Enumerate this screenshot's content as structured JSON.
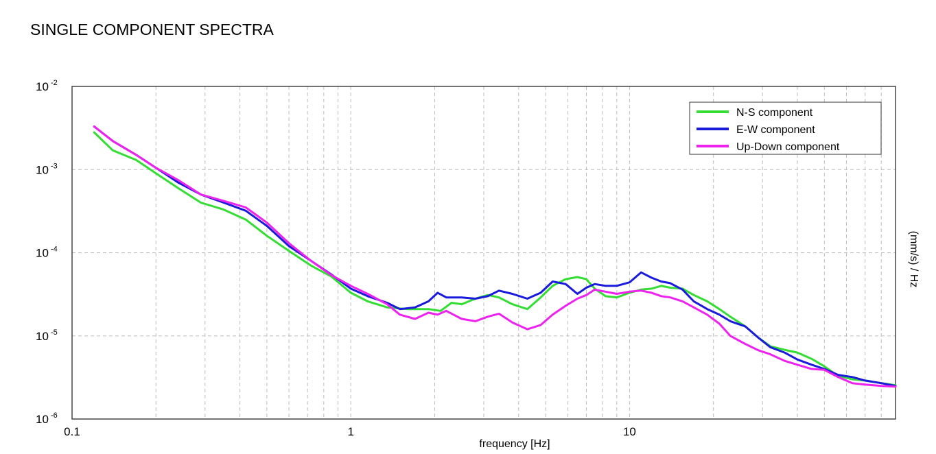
{
  "chart_data": {
    "type": "line",
    "title": "SINGLE COMPONENT SPECTRA",
    "xlabel": "frequency [Hz]",
    "ylabel": "(mm/s) / Hz",
    "xscale": "log",
    "yscale": "log",
    "xlim": [
      0.1,
      90
    ],
    "ylim": [
      1e-06,
      0.01
    ],
    "grid": true,
    "legend_position": "top-right",
    "x_ticks": [
      {
        "value": 0.1,
        "label": "0.1"
      },
      {
        "value": 1,
        "label": "1"
      },
      {
        "value": 10,
        "label": "10"
      }
    ],
    "y_ticks": [
      {
        "value": 0.01,
        "base": "10",
        "exp": "-2"
      },
      {
        "value": 0.001,
        "base": "10",
        "exp": "-3"
      },
      {
        "value": 0.0001,
        "base": "10",
        "exp": "-4"
      },
      {
        "value": 1e-05,
        "base": "10",
        "exp": "-5"
      },
      {
        "value": 1e-06,
        "base": "10",
        "exp": "-6"
      }
    ],
    "series": [
      {
        "name": "N-S component",
        "color": "#33dd33",
        "x": [
          0.12,
          0.14,
          0.17,
          0.2,
          0.24,
          0.29,
          0.35,
          0.42,
          0.5,
          0.6,
          0.72,
          0.85,
          1.0,
          1.15,
          1.35,
          1.6,
          1.9,
          2.1,
          2.3,
          2.5,
          2.8,
          3.1,
          3.4,
          3.8,
          4.3,
          4.8,
          5.3,
          5.9,
          6.5,
          7.0,
          7.5,
          8.2,
          9.0,
          10,
          11,
          12,
          13,
          14,
          15.5,
          17,
          19,
          21,
          23,
          26,
          29,
          32,
          36,
          40,
          45,
          50,
          56,
          63,
          70,
          80,
          90
        ],
        "y": [
          0.0028,
          0.0017,
          0.0013,
          0.0009,
          0.0006,
          0.0004,
          0.00033,
          0.00025,
          0.00016,
          0.000105,
          7e-05,
          5.2e-05,
          3.3e-05,
          2.6e-05,
          2.2e-05,
          2.1e-05,
          2.1e-05,
          2e-05,
          2.5e-05,
          2.4e-05,
          2.8e-05,
          3.1e-05,
          2.9e-05,
          2.4e-05,
          2.1e-05,
          2.9e-05,
          4e-05,
          4.8e-05,
          5.1e-05,
          4.8e-05,
          3.7e-05,
          3e-05,
          2.9e-05,
          3.3e-05,
          3.6e-05,
          3.7e-05,
          4e-05,
          3.8e-05,
          3.7e-05,
          3.1e-05,
          2.6e-05,
          2.1e-05,
          1.7e-05,
          1.3e-05,
          9.5e-06,
          7.5e-06,
          6.8e-06,
          6.3e-06,
          5.3e-06,
          4.3e-06,
          3.3e-06,
          3e-06,
          2.9e-06,
          2.7e-06,
          2.55e-06
        ]
      },
      {
        "name": "E-W component",
        "color": "#1a1add",
        "x": [
          0.12,
          0.14,
          0.17,
          0.2,
          0.24,
          0.29,
          0.35,
          0.42,
          0.5,
          0.6,
          0.72,
          0.85,
          1.0,
          1.15,
          1.35,
          1.5,
          1.7,
          1.9,
          2.05,
          2.2,
          2.5,
          2.8,
          3.1,
          3.4,
          3.8,
          4.3,
          4.8,
          5.3,
          5.9,
          6.5,
          7.0,
          7.5,
          8.2,
          9.0,
          10,
          11,
          12,
          13,
          14,
          15.5,
          17,
          19,
          21,
          23,
          26,
          29,
          32,
          36,
          40,
          45,
          50,
          56,
          63,
          70,
          80,
          90
        ],
        "y": [
          0.0033,
          0.0022,
          0.0015,
          0.00105,
          0.0007,
          0.0005,
          0.0004,
          0.00032,
          0.00021,
          0.00012,
          8e-05,
          5.5e-05,
          3.7e-05,
          3e-05,
          2.5e-05,
          2.1e-05,
          2.2e-05,
          2.6e-05,
          3.3e-05,
          2.9e-05,
          2.9e-05,
          2.8e-05,
          3e-05,
          3.5e-05,
          3.2e-05,
          2.8e-05,
          3.3e-05,
          4.5e-05,
          4.2e-05,
          3.2e-05,
          3.8e-05,
          4.2e-05,
          4e-05,
          4e-05,
          4.4e-05,
          5.8e-05,
          5e-05,
          4.5e-05,
          4.3e-05,
          3.6e-05,
          2.6e-05,
          2.1e-05,
          1.8e-05,
          1.5e-05,
          1.3e-05,
          9.5e-06,
          7.3e-06,
          6.3e-06,
          5.2e-06,
          4.5e-06,
          4e-06,
          3.4e-06,
          3.2e-06,
          2.9e-06,
          2.7e-06,
          2.5e-06
        ]
      },
      {
        "name": "Up-Down component",
        "color": "#ee22ee",
        "x": [
          0.12,
          0.14,
          0.17,
          0.2,
          0.24,
          0.29,
          0.35,
          0.42,
          0.5,
          0.6,
          0.72,
          0.85,
          1.0,
          1.15,
          1.35,
          1.5,
          1.7,
          1.9,
          2.05,
          2.2,
          2.5,
          2.8,
          3.1,
          3.4,
          3.8,
          4.3,
          4.8,
          5.3,
          5.9,
          6.5,
          7.0,
          7.5,
          8.2,
          9.0,
          10,
          11,
          12,
          13,
          14,
          15.5,
          17,
          19,
          21,
          23,
          26,
          29,
          32,
          36,
          40,
          45,
          50,
          56,
          63,
          70,
          80,
          90
        ],
        "y": [
          0.0033,
          0.0022,
          0.0015,
          0.00105,
          0.00075,
          0.0005,
          0.00042,
          0.00035,
          0.00023,
          0.00013,
          8e-05,
          5.4e-05,
          4e-05,
          3.2e-05,
          2.4e-05,
          1.8e-05,
          1.6e-05,
          1.9e-05,
          1.8e-05,
          2e-05,
          1.6e-05,
          1.5e-05,
          1.7e-05,
          1.85e-05,
          1.45e-05,
          1.2e-05,
          1.35e-05,
          1.8e-05,
          2.3e-05,
          2.8e-05,
          3.1e-05,
          3.6e-05,
          3.4e-05,
          3.2e-05,
          3.4e-05,
          3.5e-05,
          3.3e-05,
          3e-05,
          2.9e-05,
          2.6e-05,
          2.2e-05,
          1.8e-05,
          1.4e-05,
          1e-05,
          8e-06,
          6.7e-06,
          6e-06,
          5e-06,
          4.5e-06,
          4e-06,
          3.9e-06,
          3.2e-06,
          2.7e-06,
          2.6e-06,
          2.5e-06,
          2.45e-06
        ]
      }
    ]
  }
}
